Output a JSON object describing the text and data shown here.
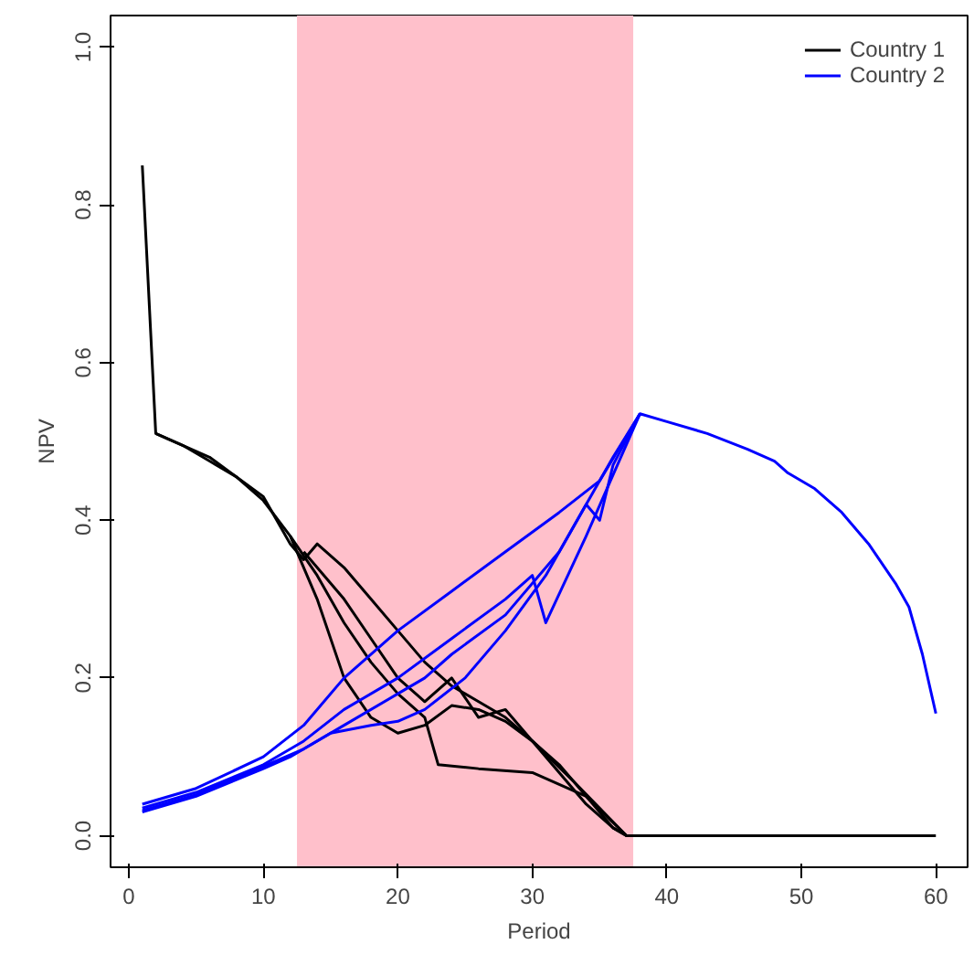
{
  "chart_data": {
    "type": "line",
    "xlabel": "Period",
    "ylabel": "NPV",
    "xlim": [
      -1.36,
      62.36
    ],
    "ylim": [
      -0.04,
      1.04
    ],
    "xticks": [
      0,
      10,
      20,
      30,
      40,
      50,
      60
    ],
    "yticks": [
      {
        "value": 0,
        "label": "0.0"
      },
      {
        "value": 0.2,
        "label": "0.2"
      },
      {
        "value": 0.4,
        "label": "0.4"
      },
      {
        "value": 0.6,
        "label": "0.6"
      },
      {
        "value": 0.8,
        "label": "0.8"
      },
      {
        "value": 1,
        "label": "1.0"
      }
    ],
    "grid": false,
    "legend": "top right",
    "line_style": "solid",
    "marker": "none",
    "bands": [
      {
        "axis": "x",
        "from": 12.5,
        "to": 37.5,
        "color": "#ffc0cb"
      }
    ],
    "series": [
      {
        "name": "Country 1",
        "color": "#000000",
        "x": [
          1,
          2,
          4,
          6,
          8,
          10,
          12,
          14,
          16,
          18,
          20,
          22,
          24,
          26,
          28,
          30,
          32,
          34,
          36,
          37,
          40,
          45,
          50,
          55,
          60
        ],
        "values": [
          0.85,
          0.51,
          0.495,
          0.475,
          0.455,
          0.425,
          0.38,
          0.3,
          0.2,
          0.15,
          0.13,
          0.14,
          0.165,
          0.16,
          0.145,
          0.12,
          0.09,
          0.05,
          0.01,
          0,
          0,
          0,
          0,
          0,
          0
        ]
      },
      {
        "color": "#000000",
        "x": [
          2,
          6,
          10,
          12,
          13,
          14,
          16,
          18,
          20,
          22,
          24,
          26,
          28,
          30,
          32,
          34,
          36,
          37
        ],
        "values": [
          0.51,
          0.48,
          0.43,
          0.37,
          0.35,
          0.37,
          0.34,
          0.3,
          0.26,
          0.22,
          0.19,
          0.17,
          0.15,
          0.12,
          0.08,
          0.04,
          0.01,
          0
        ]
      },
      {
        "color": "#000000",
        "x": [
          12,
          14,
          16,
          18,
          20,
          22,
          23,
          26,
          30,
          34,
          37
        ],
        "values": [
          0.38,
          0.33,
          0.27,
          0.22,
          0.18,
          0.15,
          0.09,
          0.085,
          0.08,
          0.05,
          0
        ]
      },
      {
        "color": "#000000",
        "x": [
          13,
          14,
          16,
          18,
          20,
          22,
          24,
          26,
          28,
          30,
          33,
          37
        ],
        "values": [
          0.36,
          0.34,
          0.3,
          0.25,
          0.2,
          0.17,
          0.2,
          0.15,
          0.16,
          0.12,
          0.07,
          0
        ]
      },
      {
        "name": "Country 2",
        "color": "#0000ff",
        "x": [
          1,
          5,
          10,
          12,
          15,
          18,
          20,
          22,
          25,
          28,
          31,
          34,
          36,
          38,
          40,
          43,
          46,
          48,
          49,
          51,
          53,
          55,
          57,
          58,
          59,
          60
        ],
        "values": [
          0.03,
          0.05,
          0.085,
          0.1,
          0.13,
          0.14,
          0.145,
          0.16,
          0.2,
          0.26,
          0.33,
          0.42,
          0.48,
          0.535,
          0.525,
          0.51,
          0.49,
          0.475,
          0.46,
          0.44,
          0.41,
          0.37,
          0.32,
          0.29,
          0.23,
          0.155
        ]
      },
      {
        "color": "#0000ff",
        "x": [
          1,
          5,
          10,
          13,
          16,
          20,
          24,
          28,
          32,
          35,
          38
        ],
        "values": [
          0.04,
          0.06,
          0.1,
          0.14,
          0.2,
          0.26,
          0.31,
          0.36,
          0.41,
          0.45,
          0.535
        ]
      },
      {
        "color": "#0000ff",
        "x": [
          1,
          5,
          10,
          13,
          16,
          20,
          24,
          28,
          30,
          31,
          34,
          38
        ],
        "values": [
          0.035,
          0.055,
          0.09,
          0.12,
          0.16,
          0.2,
          0.25,
          0.3,
          0.33,
          0.27,
          0.38,
          0.535
        ]
      },
      {
        "color": "#0000ff",
        "x": [
          1,
          5,
          10,
          13,
          16,
          20,
          22,
          24,
          28,
          32,
          34,
          35,
          36,
          38
        ],
        "values": [
          0.032,
          0.052,
          0.088,
          0.11,
          0.14,
          0.18,
          0.2,
          0.23,
          0.28,
          0.36,
          0.42,
          0.4,
          0.47,
          0.535
        ]
      }
    ]
  }
}
